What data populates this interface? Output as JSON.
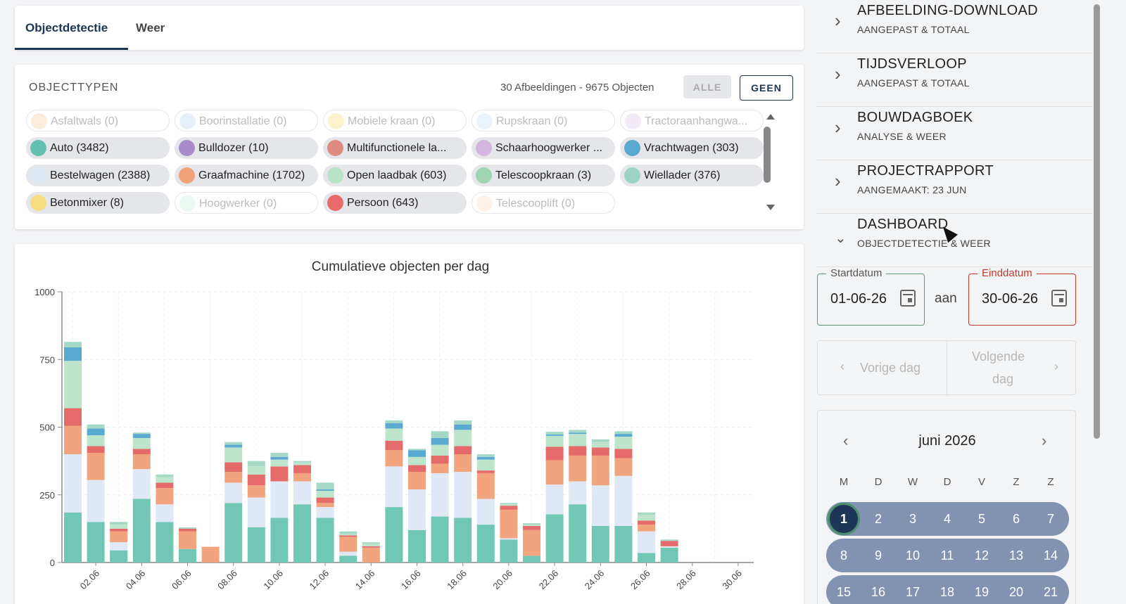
{
  "tabs": [
    {
      "label": "Objectdetectie",
      "active": true
    },
    {
      "label": "Weer",
      "active": false
    }
  ],
  "objecttypes": {
    "title": "OBJECTTYPEN",
    "summary": "30 Afbeeldingen - 9675 Objecten",
    "btn_all": "ALLE",
    "btn_none": "GEEN",
    "chips": [
      {
        "label": "Asfaltwals (0)",
        "color": "#f6c89a",
        "on": false
      },
      {
        "label": "Boorinstallatie (0)",
        "color": "#b9d3ee",
        "on": false
      },
      {
        "label": "Mobiele kraan (0)",
        "color": "#f5dd6e",
        "on": false
      },
      {
        "label": "Rupskraan (0)",
        "color": "#c5dcf5",
        "on": false
      },
      {
        "label": "Tractoraanhangwa...",
        "color": "#d8c4e0",
        "on": false
      },
      {
        "label": "Auto (3482)",
        "color": "#63bfae",
        "on": true
      },
      {
        "label": "Bulldozer (10)",
        "color": "#a98bcc",
        "on": true
      },
      {
        "label": "Multifunctionele la...",
        "color": "#e08b7f",
        "on": true
      },
      {
        "label": "Schaarhoogwerker ...",
        "color": "#d3b5e0",
        "on": true
      },
      {
        "label": "Vrachtwagen (303)",
        "color": "#5aa9cf",
        "on": true
      },
      {
        "label": "Bestelwagen (2388)",
        "color": "#dde9f6",
        "on": true
      },
      {
        "label": "Graafmachine (1702)",
        "color": "#f2a27a",
        "on": true
      },
      {
        "label": "Open laadbak (603)",
        "color": "#b9e3c6",
        "on": true
      },
      {
        "label": "Telescoopkraan (3)",
        "color": "#9ed4b0",
        "on": true
      },
      {
        "label": "Wiellader (376)",
        "color": "#9cd3c2",
        "on": true
      },
      {
        "label": "Betonmixer (8)",
        "color": "#f7dd82",
        "on": true
      },
      {
        "label": "Hoogwerker (0)",
        "color": "#c4ecd6",
        "on": false
      },
      {
        "label": "Persoon (643)",
        "color": "#e86a6a",
        "on": true
      },
      {
        "label": "Telescooplift (0)",
        "color": "#fbd8c0",
        "on": false
      }
    ]
  },
  "chart_data": {
    "type": "bar",
    "stacked": true,
    "title": "Cumulatieve objecten per dag",
    "ylim": [
      0,
      1000
    ],
    "yticks": [
      0,
      250,
      500,
      750,
      1000
    ],
    "xticks": [
      "02.06",
      "04.06",
      "06.06",
      "08.06",
      "10.06",
      "12.06",
      "14.06",
      "16.06",
      "18.06",
      "20.06",
      "22.06",
      "24.06",
      "26.06",
      "28.06",
      "30.06"
    ],
    "categories": [
      "01.06",
      "02.06",
      "03.06",
      "04.06",
      "05.06",
      "06.06",
      "07.06",
      "08.06",
      "09.06",
      "10.06",
      "11.06",
      "12.06",
      "13.06",
      "14.06",
      "15.06",
      "16.06",
      "17.06",
      "18.06",
      "19.06",
      "20.06",
      "21.06",
      "22.06",
      "23.06",
      "24.06",
      "25.06",
      "26.06",
      "27.06",
      "28.06",
      "29.06",
      "30.06"
    ],
    "series": [
      {
        "name": "Auto",
        "color": "#6fc7b4",
        "values": [
          185,
          150,
          45,
          235,
          150,
          50,
          0,
          220,
          130,
          165,
          215,
          165,
          25,
          0,
          205,
          120,
          170,
          165,
          140,
          85,
          25,
          178,
          215,
          135,
          135,
          35,
          55,
          0,
          0,
          0
        ]
      },
      {
        "name": "Bestelwagen",
        "color": "#dfe8f4",
        "values": [
          215,
          155,
          30,
          110,
          65,
          0,
          0,
          75,
          110,
          135,
          85,
          40,
          15,
          0,
          150,
          150,
          160,
          170,
          95,
          5,
          0,
          110,
          85,
          150,
          185,
          80,
          5,
          0,
          0,
          0
        ]
      },
      {
        "name": "Graafmachine",
        "color": "#f2a47e",
        "values": [
          105,
          100,
          40,
          55,
          60,
          65,
          58,
          40,
          45,
          0,
          30,
          15,
          55,
          55,
          60,
          65,
          35,
          65,
          95,
          105,
          95,
          90,
          95,
          110,
          65,
          25,
          0,
          0,
          0,
          0
        ]
      },
      {
        "name": "Persoon",
        "color": "#e56b6b",
        "values": [
          65,
          25,
          10,
          20,
          20,
          10,
          0,
          35,
          40,
          55,
          30,
          20,
          5,
          5,
          35,
          25,
          30,
          30,
          10,
          15,
          15,
          50,
          35,
          30,
          35,
          15,
          20,
          0,
          0,
          0
        ]
      },
      {
        "name": "Open laadbak",
        "color": "#bde5cb",
        "values": [
          175,
          40,
          15,
          40,
          20,
          0,
          0,
          55,
          30,
          25,
          10,
          25,
          5,
          10,
          45,
          30,
          40,
          60,
          40,
          5,
          5,
          40,
          45,
          20,
          45,
          20,
          0,
          0,
          0,
          0
        ]
      },
      {
        "name": "Vrachtwagen",
        "color": "#5aa9d0",
        "values": [
          50,
          25,
          0,
          15,
          0,
          0,
          0,
          10,
          0,
          10,
          0,
          5,
          0,
          0,
          20,
          25,
          25,
          20,
          10,
          0,
          0,
          5,
          5,
          0,
          10,
          0,
          0,
          0,
          0,
          0
        ]
      },
      {
        "name": "Wiellader",
        "color": "#a6d8c6",
        "values": [
          20,
          15,
          10,
          5,
          10,
          5,
          0,
          10,
          20,
          15,
          5,
          25,
          10,
          5,
          10,
          5,
          25,
          15,
          10,
          5,
          5,
          10,
          10,
          10,
          10,
          10,
          5,
          0,
          0,
          0
        ]
      }
    ]
  },
  "sidebar": {
    "items": [
      {
        "title": "AFBEELDING-DOWNLOAD",
        "sub": "AANGEPAST & TOTAAL",
        "chevron": ">"
      },
      {
        "title": "TIJDSVERLOOP",
        "sub": "AANGEPAST & TOTAAL",
        "chevron": ">"
      },
      {
        "title": "BOUWDAGBOEK",
        "sub": "ANALYSE & WEER",
        "chevron": ">"
      },
      {
        "title": "PROJECTRAPPORT",
        "sub": "AANGEMAAKT: 23 JUN",
        "chevron": ">"
      },
      {
        "title": "DASHBOARD",
        "sub": "OBJECTDETECTIE & WEER",
        "chevron": "v"
      }
    ],
    "start": {
      "label": "Startdatum",
      "value": "01-06-26"
    },
    "between": "aan",
    "end": {
      "label": "Einddatum",
      "value": "30-06-26"
    },
    "prev_day": "Vorige dag",
    "next_day_1": "Volgende",
    "next_day_2": "dag",
    "calendar": {
      "month": "juni 2026",
      "dow": [
        "M",
        "D",
        "W",
        "D",
        "V",
        "Z",
        "Z"
      ],
      "weeks": [
        [
          "1",
          "2",
          "3",
          "4",
          "5",
          "6",
          "7"
        ],
        [
          "8",
          "9",
          "10",
          "11",
          "12",
          "13",
          "14"
        ],
        [
          "15",
          "16",
          "17",
          "18",
          "19",
          "20",
          "21"
        ]
      ],
      "selected": "1"
    }
  }
}
